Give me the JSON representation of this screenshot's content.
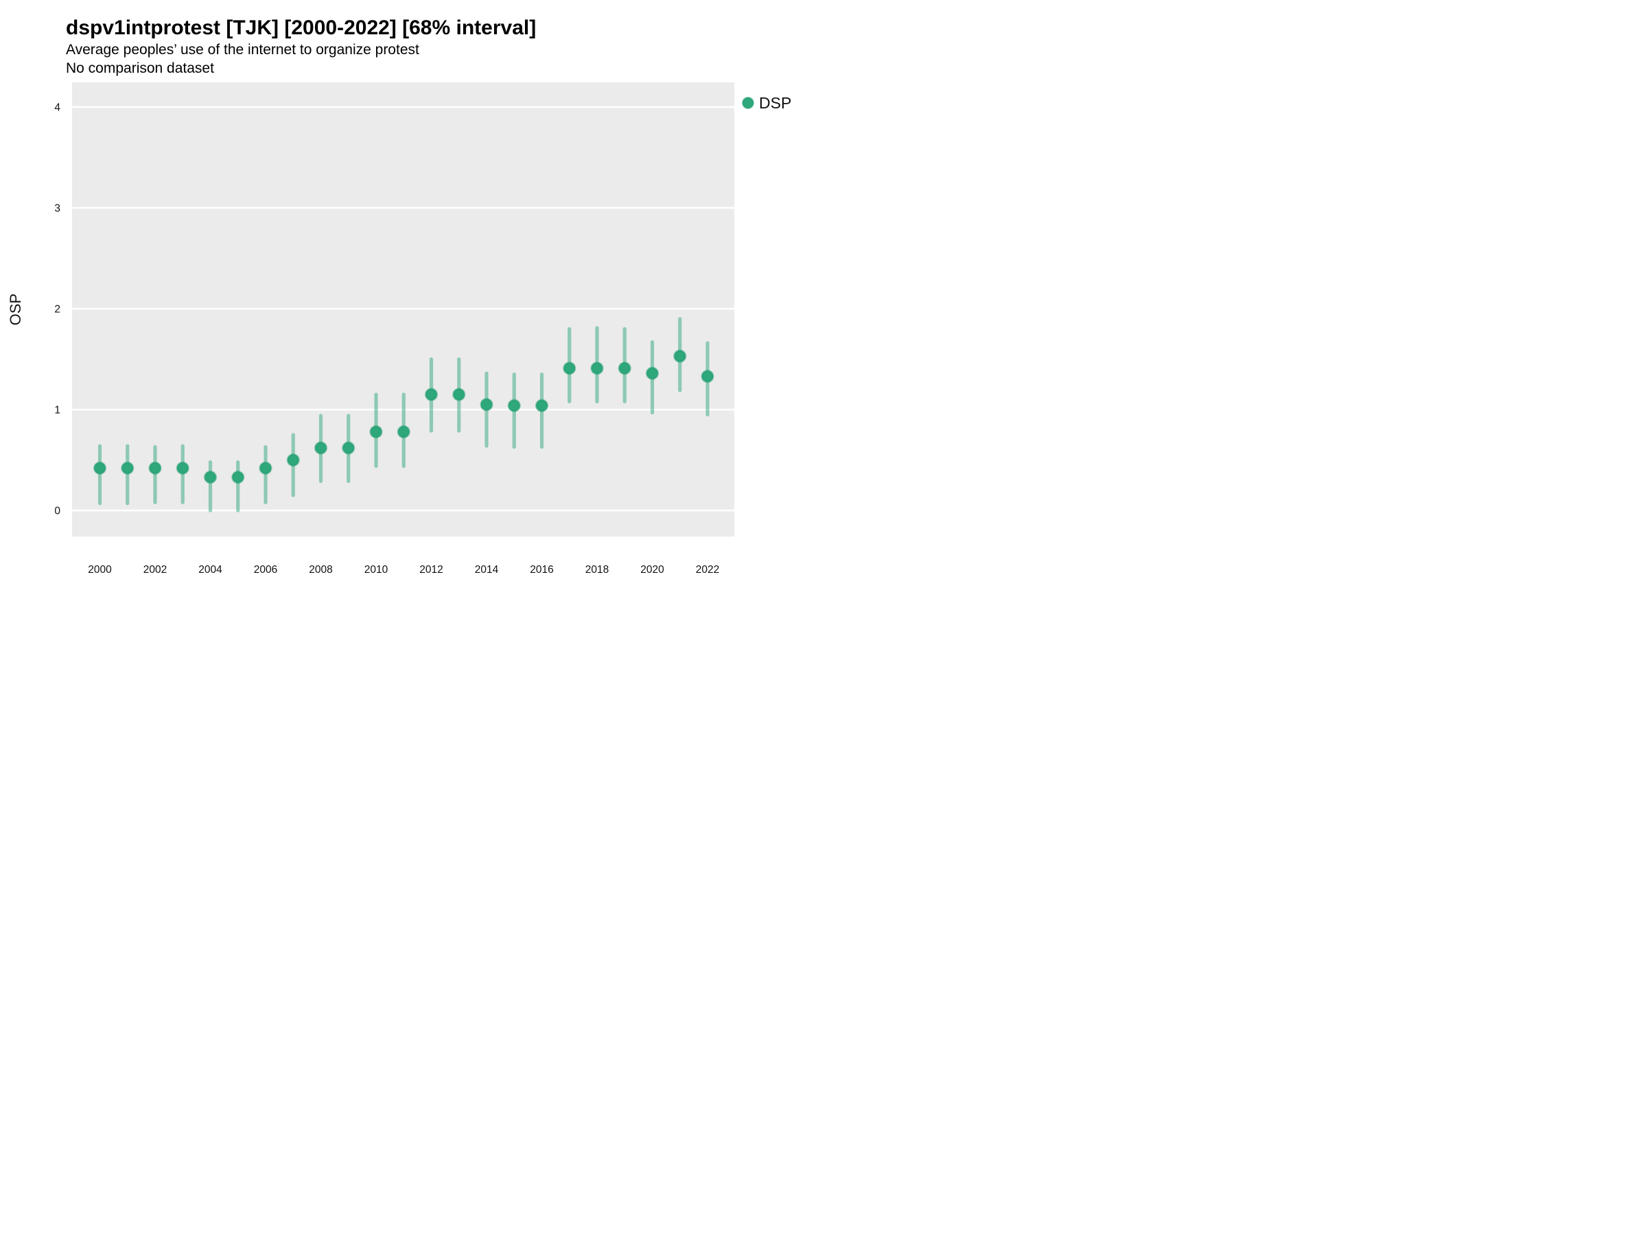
{
  "header": {
    "title": "dspv1intprotest [TJK] [2000-2022] [68% interval]",
    "subtitle": "Average peoples’ use of the internet to organize protest",
    "note": "No comparison dataset"
  },
  "chart_data": {
    "type": "scatter",
    "subtype": "pointrange-interval",
    "title": "dspv1intprotest [TJK] [2000-2022] [68% interval]",
    "subtitle": "Average peoples’ use of the internet to organize protest",
    "note": "No comparison dataset",
    "interval": "68%",
    "xlabel": "",
    "ylabel": "OSP",
    "ylim": [
      0,
      4
    ],
    "yticks": [
      0,
      1,
      2,
      3,
      4
    ],
    "xticks": [
      2000,
      2002,
      2004,
      2006,
      2008,
      2010,
      2012,
      2014,
      2016,
      2018,
      2020,
      2022
    ],
    "grid": "horizontal-white-on-gray",
    "legend": {
      "position": "right",
      "label": "DSP"
    },
    "series": [
      {
        "name": "DSP",
        "points": [
          {
            "year": 2000,
            "value": 0.42,
            "low": 0.07,
            "high": 0.64
          },
          {
            "year": 2001,
            "value": 0.42,
            "low": 0.07,
            "high": 0.64
          },
          {
            "year": 2002,
            "value": 0.42,
            "low": 0.08,
            "high": 0.63
          },
          {
            "year": 2003,
            "value": 0.42,
            "low": 0.08,
            "high": 0.64
          },
          {
            "year": 2004,
            "value": 0.33,
            "low": 0.0,
            "high": 0.48
          },
          {
            "year": 2005,
            "value": 0.33,
            "low": 0.0,
            "high": 0.48
          },
          {
            "year": 2006,
            "value": 0.42,
            "low": 0.08,
            "high": 0.63
          },
          {
            "year": 2007,
            "value": 0.5,
            "low": 0.15,
            "high": 0.75
          },
          {
            "year": 2008,
            "value": 0.62,
            "low": 0.29,
            "high": 0.94
          },
          {
            "year": 2009,
            "value": 0.62,
            "low": 0.29,
            "high": 0.94
          },
          {
            "year": 2010,
            "value": 0.78,
            "low": 0.44,
            "high": 1.15
          },
          {
            "year": 2011,
            "value": 0.78,
            "low": 0.44,
            "high": 1.15
          },
          {
            "year": 2012,
            "value": 1.15,
            "low": 0.79,
            "high": 1.5
          },
          {
            "year": 2013,
            "value": 1.15,
            "low": 0.79,
            "high": 1.5
          },
          {
            "year": 2014,
            "value": 1.05,
            "low": 0.64,
            "high": 1.36
          },
          {
            "year": 2015,
            "value": 1.04,
            "low": 0.63,
            "high": 1.35
          },
          {
            "year": 2016,
            "value": 1.04,
            "low": 0.63,
            "high": 1.35
          },
          {
            "year": 2017,
            "value": 1.41,
            "low": 1.08,
            "high": 1.8
          },
          {
            "year": 2018,
            "value": 1.41,
            "low": 1.08,
            "high": 1.81
          },
          {
            "year": 2019,
            "value": 1.41,
            "low": 1.08,
            "high": 1.8
          },
          {
            "year": 2020,
            "value": 1.36,
            "low": 0.97,
            "high": 1.67
          },
          {
            "year": 2021,
            "value": 1.53,
            "low": 1.19,
            "high": 1.9
          },
          {
            "year": 2022,
            "value": 1.33,
            "low": 0.95,
            "high": 1.66
          }
        ]
      }
    ]
  },
  "style": {
    "page_background": "#ffffff",
    "panel_background": "#ebebeb",
    "gridline_color": "#ffffff",
    "marker_fill": "#2ea77b",
    "marker_stroke": "#1e9c6c",
    "interval_color": "rgba(47,168,124,0.5)",
    "text_color": "#111111"
  }
}
